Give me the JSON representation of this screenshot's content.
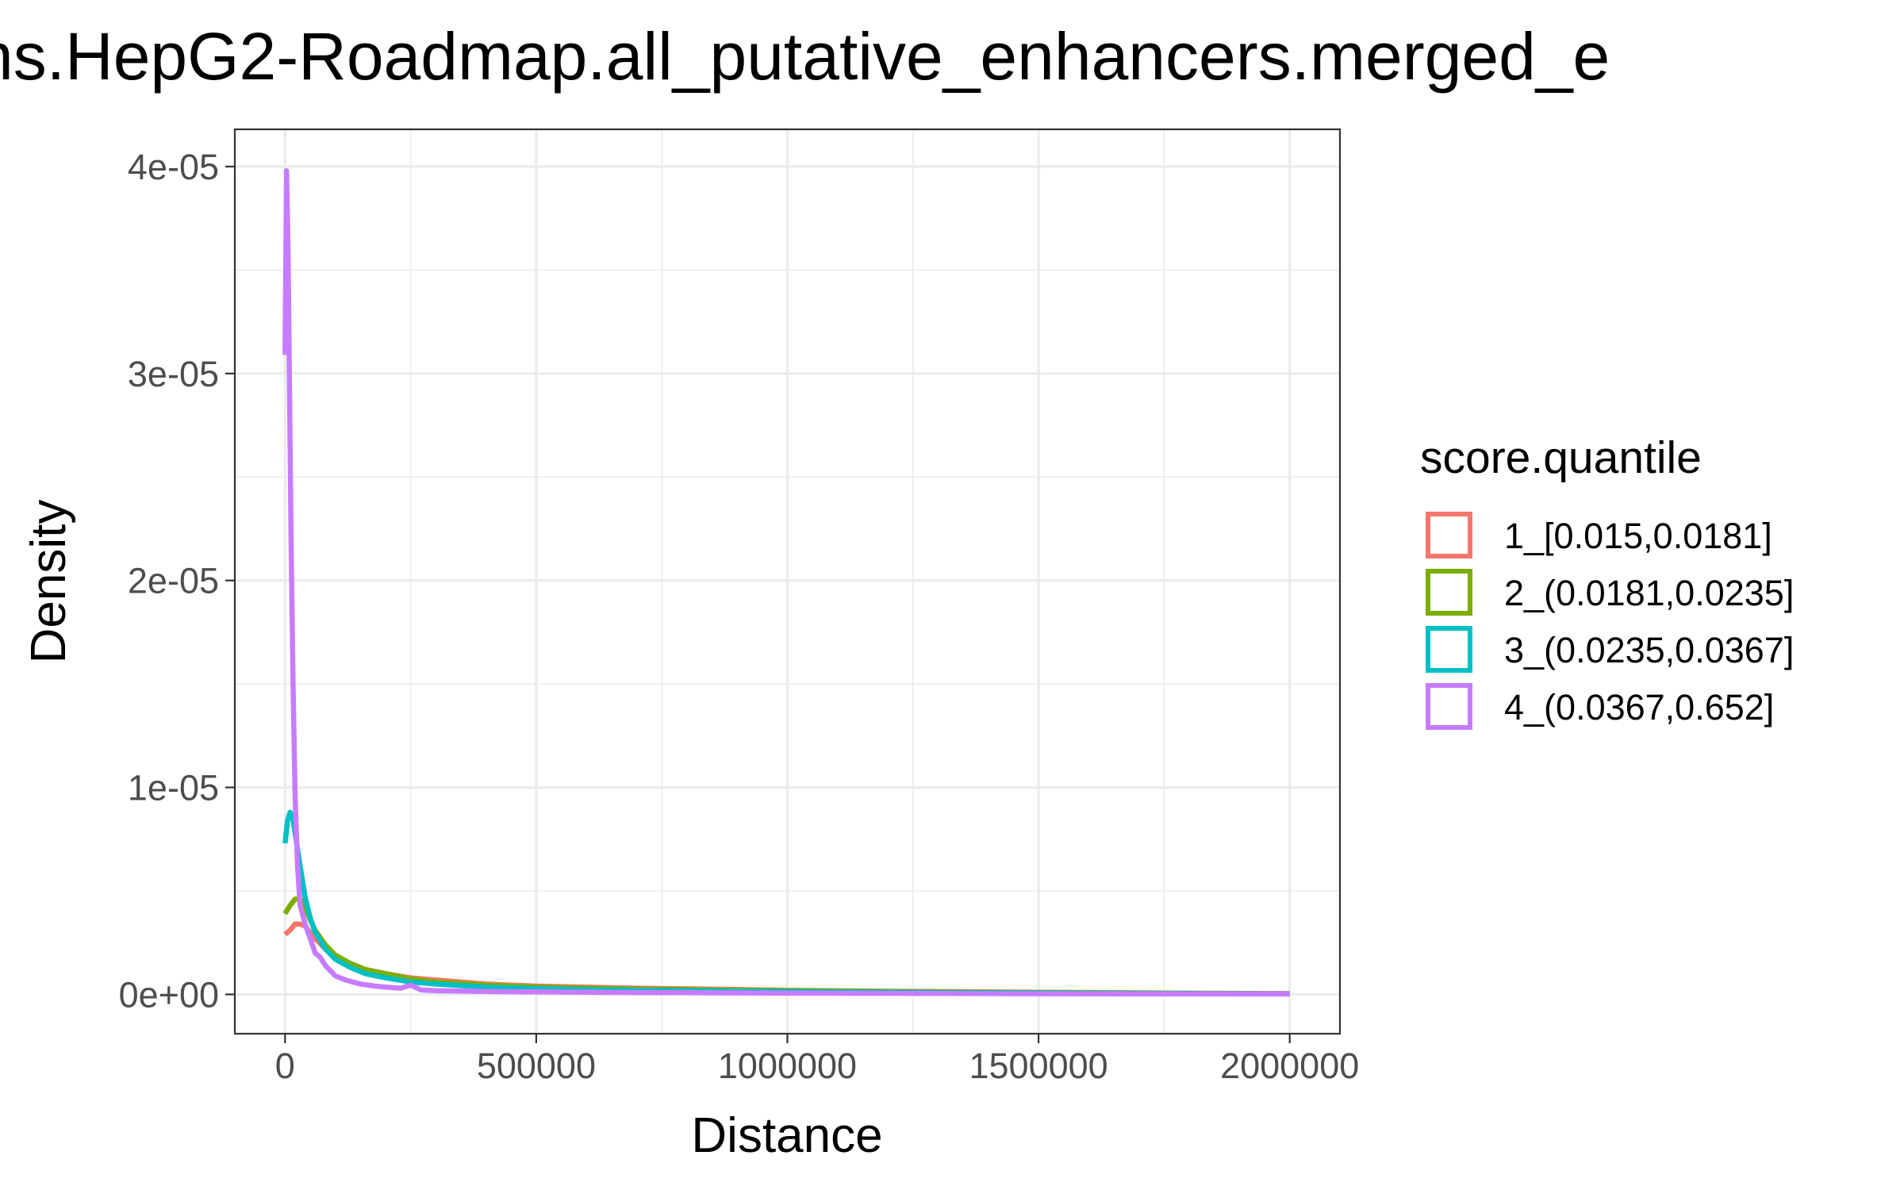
{
  "chart_data": {
    "type": "line",
    "title": "ns.HepG2-Roadmap.all_putative_enhancers.merged_e",
    "xlabel": "Distance",
    "ylabel": "Density",
    "xlim": [
      -100000,
      2100000
    ],
    "ylim": [
      -1.9e-06,
      4.18e-05
    ],
    "x_ticks": [
      {
        "value": 0,
        "label": "0"
      },
      {
        "value": 500000,
        "label": "500000"
      },
      {
        "value": 1000000,
        "label": "1000000"
      },
      {
        "value": 1500000,
        "label": "1500000"
      },
      {
        "value": 2000000,
        "label": "2000000"
      }
    ],
    "y_ticks": [
      {
        "value": 0,
        "label": "0e+00"
      },
      {
        "value": 1e-05,
        "label": "1e-05"
      },
      {
        "value": 2e-05,
        "label": "2e-05"
      },
      {
        "value": 3e-05,
        "label": "3e-05"
      },
      {
        "value": 4e-05,
        "label": "4e-05"
      }
    ],
    "grid": true,
    "legend": {
      "title": "score.quantile",
      "position": "right"
    },
    "series": [
      {
        "name": "1_[0.015,0.0181]",
        "color": "#F8766D",
        "x": [
          0,
          10000,
          20000,
          30000,
          40000,
          50000,
          60000,
          80000,
          100000,
          130000,
          160000,
          200000,
          250000,
          300000,
          400000,
          500000,
          600000,
          700000,
          800000,
          900000,
          1000000,
          1200000,
          1400000,
          1600000,
          1800000,
          2000000
        ],
        "y": [
          2.9e-06,
          3.1e-06,
          3.4e-06,
          3.4e-06,
          3.3e-06,
          3e-06,
          2.7e-06,
          2.2e-06,
          1.8e-06,
          1.4e-06,
          1.2e-06,
          1e-06,
          8e-07,
          7e-07,
          5e-07,
          4e-07,
          3.5e-07,
          3e-07,
          2.7e-07,
          2.4e-07,
          2e-07,
          1.5e-07,
          1.2e-07,
          9e-08,
          6e-08,
          4e-08
        ]
      },
      {
        "name": "2_(0.0181,0.0235]",
        "color": "#7CAE00",
        "x": [
          0,
          10000,
          20000,
          30000,
          40000,
          50000,
          60000,
          80000,
          100000,
          130000,
          160000,
          200000,
          250000,
          300000,
          400000,
          500000,
          600000,
          700000,
          800000,
          900000,
          1000000,
          1200000,
          1400000,
          1600000,
          1800000,
          2000000
        ],
        "y": [
          3.9e-06,
          4.3e-06,
          4.6e-06,
          4.6e-06,
          4.2e-06,
          3.6e-06,
          3.1e-06,
          2.4e-06,
          1.9e-06,
          1.5e-06,
          1.2e-06,
          1e-06,
          7.5e-07,
          6e-07,
          4.5e-07,
          3.5e-07,
          3e-07,
          2.6e-07,
          2.3e-07,
          2e-07,
          1.8e-07,
          1.4e-07,
          1e-07,
          8e-08,
          5e-08,
          3e-08
        ]
      },
      {
        "name": "3_(0.0235,0.0367]",
        "color": "#00BFC4",
        "x": [
          0,
          5000,
          10000,
          15000,
          20000,
          30000,
          40000,
          50000,
          60000,
          80000,
          100000,
          130000,
          160000,
          200000,
          250000,
          300000,
          400000,
          500000,
          600000,
          700000,
          800000,
          900000,
          1000000,
          1200000,
          1400000,
          1600000,
          1800000,
          2000000
        ],
        "y": [
          7.3e-06,
          8.4e-06,
          8.8e-06,
          8.6e-06,
          7.8e-06,
          6.2e-06,
          4.7e-06,
          3.7e-06,
          3e-06,
          2.2e-06,
          1.7e-06,
          1.3e-06,
          1e-06,
          8e-07,
          6e-07,
          5e-07,
          3.5e-07,
          2.8e-07,
          2.3e-07,
          2e-07,
          1.8e-07,
          1.6e-07,
          1.4e-07,
          1e-07,
          8e-08,
          6e-08,
          4e-08,
          3e-08
        ]
      },
      {
        "name": "4_(0.0367,0.652]",
        "color": "#C77CFF",
        "x": [
          0,
          3000,
          6000,
          9000,
          12000,
          16000,
          20000,
          25000,
          30000,
          40000,
          50000,
          60000,
          70000,
          80000,
          100000,
          120000,
          150000,
          180000,
          200000,
          230000,
          250000,
          270000,
          300000,
          350000,
          400000,
          500000,
          600000,
          700000,
          800000,
          900000,
          1000000,
          1200000,
          1400000,
          1600000,
          1800000,
          2000000
        ],
        "y": [
          3.09e-05,
          3.98e-05,
          3.6e-05,
          2.9e-05,
          2.2e-05,
          1.5e-05,
          9.5e-06,
          6.2e-06,
          4.3e-06,
          3.4e-06,
          2.7e-06,
          2e-06,
          1.8e-06,
          1.4e-06,
          9e-07,
          7e-07,
          5e-07,
          4e-07,
          3.5e-07,
          3e-07,
          4.5e-07,
          2.2e-07,
          1.8e-07,
          1.6e-07,
          1.4e-07,
          1.2e-07,
          1e-07,
          9e-08,
          8e-08,
          7e-08,
          6e-08,
          5e-08,
          4e-08,
          3e-08,
          2e-08,
          2e-08
        ]
      }
    ]
  }
}
